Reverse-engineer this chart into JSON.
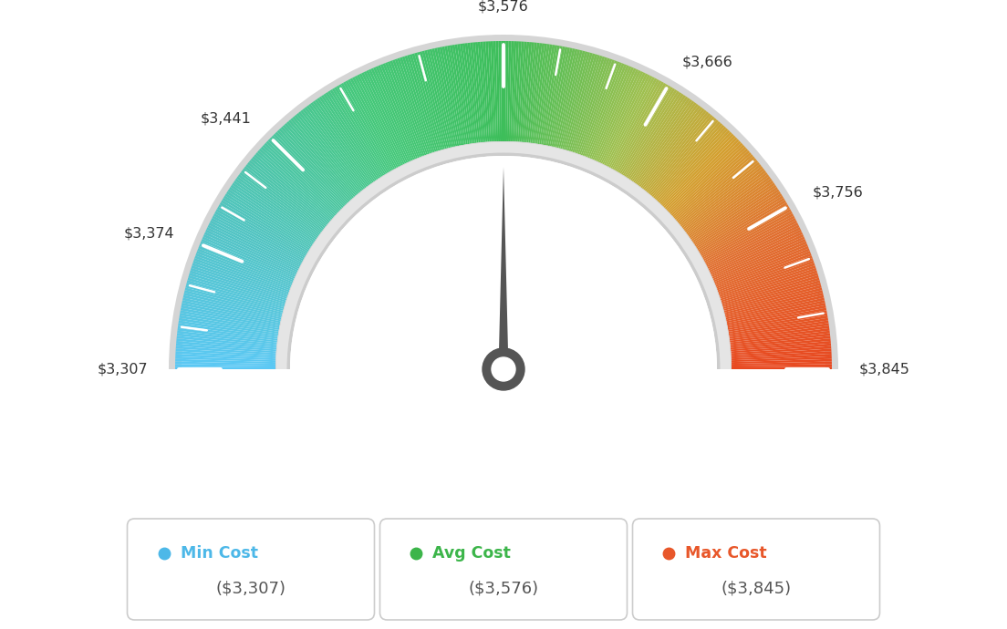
{
  "min_value": 3307,
  "avg_value": 3576,
  "max_value": 3845,
  "tick_values": [
    3307,
    3374,
    3441,
    3576,
    3666,
    3756,
    3845
  ],
  "tick_labels": [
    "$3,307",
    "$3,374",
    "$3,441",
    "$3,576",
    "$3,666",
    "$3,756",
    "$3,845"
  ],
  "legend_labels": [
    "Min Cost",
    "Avg Cost",
    "Max Cost"
  ],
  "legend_values": [
    "($3,307)",
    "($3,576)",
    "($3,845)"
  ],
  "legend_colors": [
    "#4db8e8",
    "#3cb54a",
    "#e8572a"
  ],
  "gauge_colors": [
    [
      0.0,
      "#5bc8f5"
    ],
    [
      0.15,
      "#52c4c4"
    ],
    [
      0.35,
      "#45c87a"
    ],
    [
      0.5,
      "#3dbe5a"
    ],
    [
      0.65,
      "#a0c050"
    ],
    [
      0.75,
      "#d4a030"
    ],
    [
      0.85,
      "#e07030"
    ],
    [
      1.0,
      "#e84820"
    ]
  ],
  "bg_color": "#ffffff",
  "needle_color": "#555555",
  "rim_outer_color": "#d5d5d5",
  "rim_inner_color": "#e8e8e8"
}
